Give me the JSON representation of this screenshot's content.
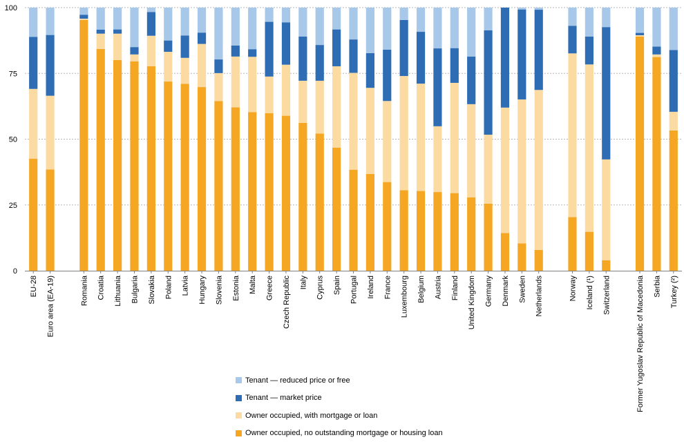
{
  "chart_data": {
    "type": "bar",
    "stacked": true,
    "title": "",
    "xlabel": "",
    "ylabel": "",
    "ylim": [
      0,
      100
    ],
    "yticks": [
      0,
      25,
      50,
      75,
      100
    ],
    "grid": true,
    "legend_position": "bottom",
    "categories": [
      "EU-28",
      "Euro area (EA-19)",
      "Romania",
      "Croatia",
      "Lithuania",
      "Bulgaria",
      "Slovakia",
      "Poland",
      "Latvia",
      "Hungary",
      "Slovenia",
      "Estonia",
      "Malta",
      "Greece",
      "Czech Republic",
      "Italy",
      "Cyprus",
      "Spain",
      "Portugal",
      "Ireland",
      "France",
      "Luxembourg",
      "Belgium",
      "Austria",
      "Finland",
      "United Kingdom",
      "Germany",
      "Denmark",
      "Sweden",
      "Netherlands",
      "Norway",
      "Iceland (¹)",
      "Switzerland",
      "Former Yugoslav Republic of Macedonia",
      "Serbia",
      "Turkey (²)"
    ],
    "groups": [
      2,
      28,
      3,
      3
    ],
    "series": [
      {
        "name": "Owner occupied, no outstanding mortgage or housing loan",
        "color": "#F5A623",
        "values": [
          42.6,
          38.5,
          95.3,
          84.3,
          80.1,
          79.6,
          77.7,
          71.9,
          71.0,
          69.8,
          64.5,
          62.1,
          60.3,
          59.9,
          58.9,
          56.2,
          52.1,
          46.8,
          38.4,
          36.8,
          33.7,
          30.6,
          30.3,
          29.9,
          29.5,
          27.9,
          25.5,
          14.3,
          10.4,
          7.9,
          20.4,
          14.8,
          4.0,
          89.0,
          81.2,
          53.3
        ]
      },
      {
        "name": "Owner occupied, with mortgage or loan",
        "color": "#FCDBA3",
        "values": [
          26.5,
          28.0,
          0.5,
          5.8,
          10.0,
          2.6,
          11.6,
          11.3,
          9.9,
          16.4,
          10.6,
          19.3,
          21.0,
          13.9,
          19.4,
          16.0,
          20.1,
          30.9,
          36.8,
          32.7,
          30.8,
          43.4,
          40.8,
          25.0,
          41.9,
          35.4,
          26.2,
          47.7,
          54.7,
          60.8,
          62.2,
          63.6,
          38.3,
          0.5,
          1.0,
          7.1
        ]
      },
      {
        "name": "Tenant — market price",
        "color": "#2E6DB4",
        "values": [
          19.8,
          23.1,
          1.5,
          1.5,
          1.6,
          2.8,
          9.0,
          4.3,
          8.5,
          4.3,
          5.2,
          4.2,
          2.9,
          20.8,
          16.1,
          16.8,
          13.6,
          14.0,
          12.7,
          13.2,
          19.5,
          21.3,
          19.7,
          29.6,
          13.2,
          18.1,
          39.7,
          38.0,
          34.2,
          30.5,
          10.5,
          10.6,
          50.3,
          0.9,
          3.0,
          23.5
        ]
      },
      {
        "name": "Tenant — reduced price or free",
        "color": "#A7C8E8",
        "values": [
          11.1,
          10.4,
          2.7,
          8.4,
          8.3,
          15.0,
          1.7,
          12.5,
          10.6,
          9.5,
          19.7,
          14.4,
          15.8,
          5.4,
          5.6,
          11.0,
          14.2,
          8.3,
          12.1,
          17.3,
          16.0,
          4.7,
          9.2,
          15.5,
          15.4,
          18.6,
          8.6,
          0.0,
          0.7,
          0.8,
          6.9,
          11.0,
          7.4,
          9.6,
          14.8,
          16.1
        ]
      }
    ]
  }
}
